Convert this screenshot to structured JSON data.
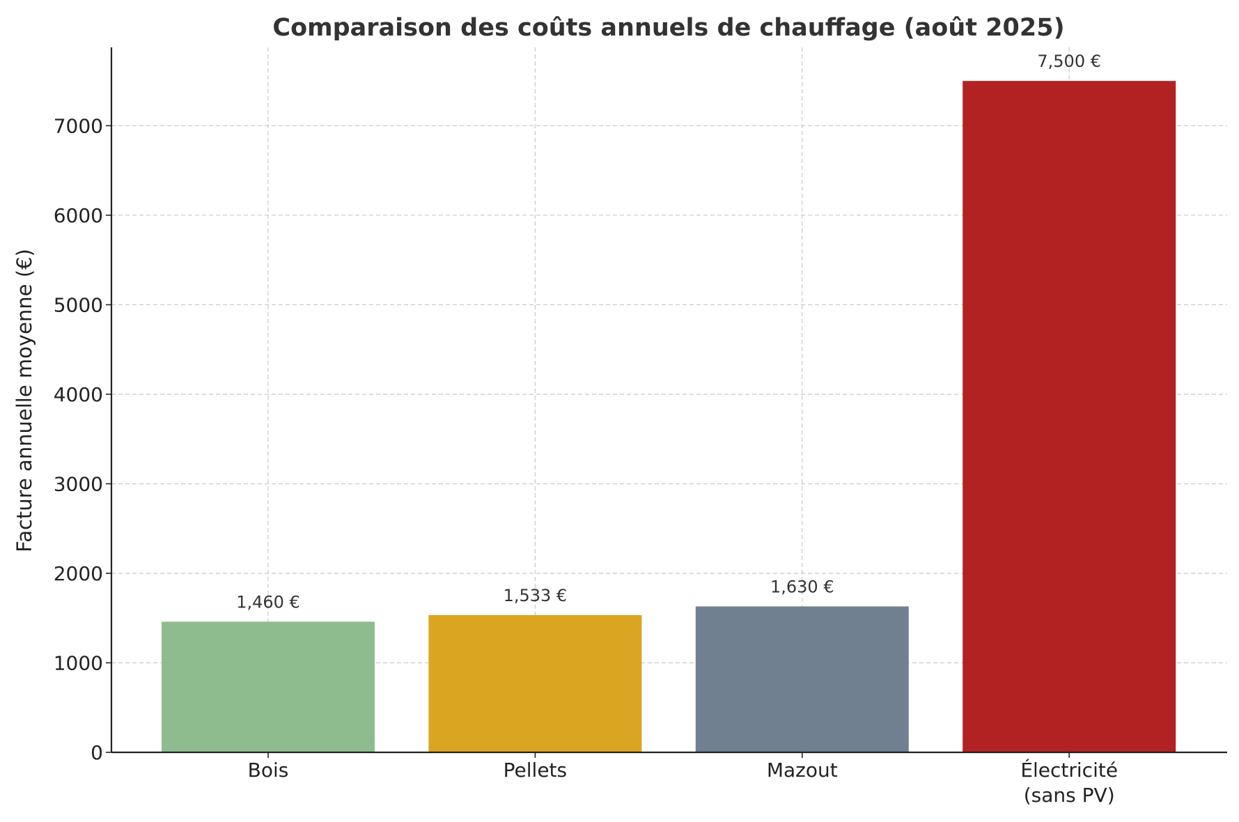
{
  "chart_data": {
    "type": "bar",
    "title": "Comparaison des coûts annuels de chauffage (août 2025)",
    "xlabel": "",
    "ylabel": "Facture annuelle moyenne (€)",
    "categories": [
      "Bois",
      "Pellets",
      "Mazout",
      "Électricité\n(sans PV)"
    ],
    "values": [
      1460,
      1533,
      1630,
      7500
    ],
    "value_labels": [
      "1,460 €",
      "1,533 €",
      "1,630 €",
      "7,500 €"
    ],
    "colors": [
      "#8fbc8f",
      "#daa520",
      "#708090",
      "#b22222"
    ],
    "ylim": [
      0,
      7875
    ],
    "yticks": [
      0,
      1000,
      2000,
      3000,
      4000,
      5000,
      6000,
      7000
    ],
    "grid": true,
    "legend": "none"
  }
}
